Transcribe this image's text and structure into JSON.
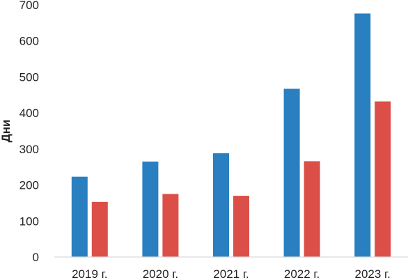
{
  "chart_data": {
    "type": "bar",
    "title": "",
    "xlabel": "",
    "ylabel": "Дни",
    "ylim": [
      0,
      700
    ],
    "yticks": [
      0,
      100,
      200,
      300,
      400,
      500,
      600,
      700
    ],
    "grid": false,
    "legend": "none",
    "categories": [
      "2019 г.",
      "2020 г.",
      "2021 г.",
      "2022 г.",
      "2023 г."
    ],
    "series": [
      {
        "color": "#2a7fc1",
        "values": [
          223,
          265,
          288,
          467,
          676
        ]
      },
      {
        "color": "#dc4f49",
        "values": [
          153,
          175,
          170,
          266,
          432
        ]
      }
    ]
  }
}
